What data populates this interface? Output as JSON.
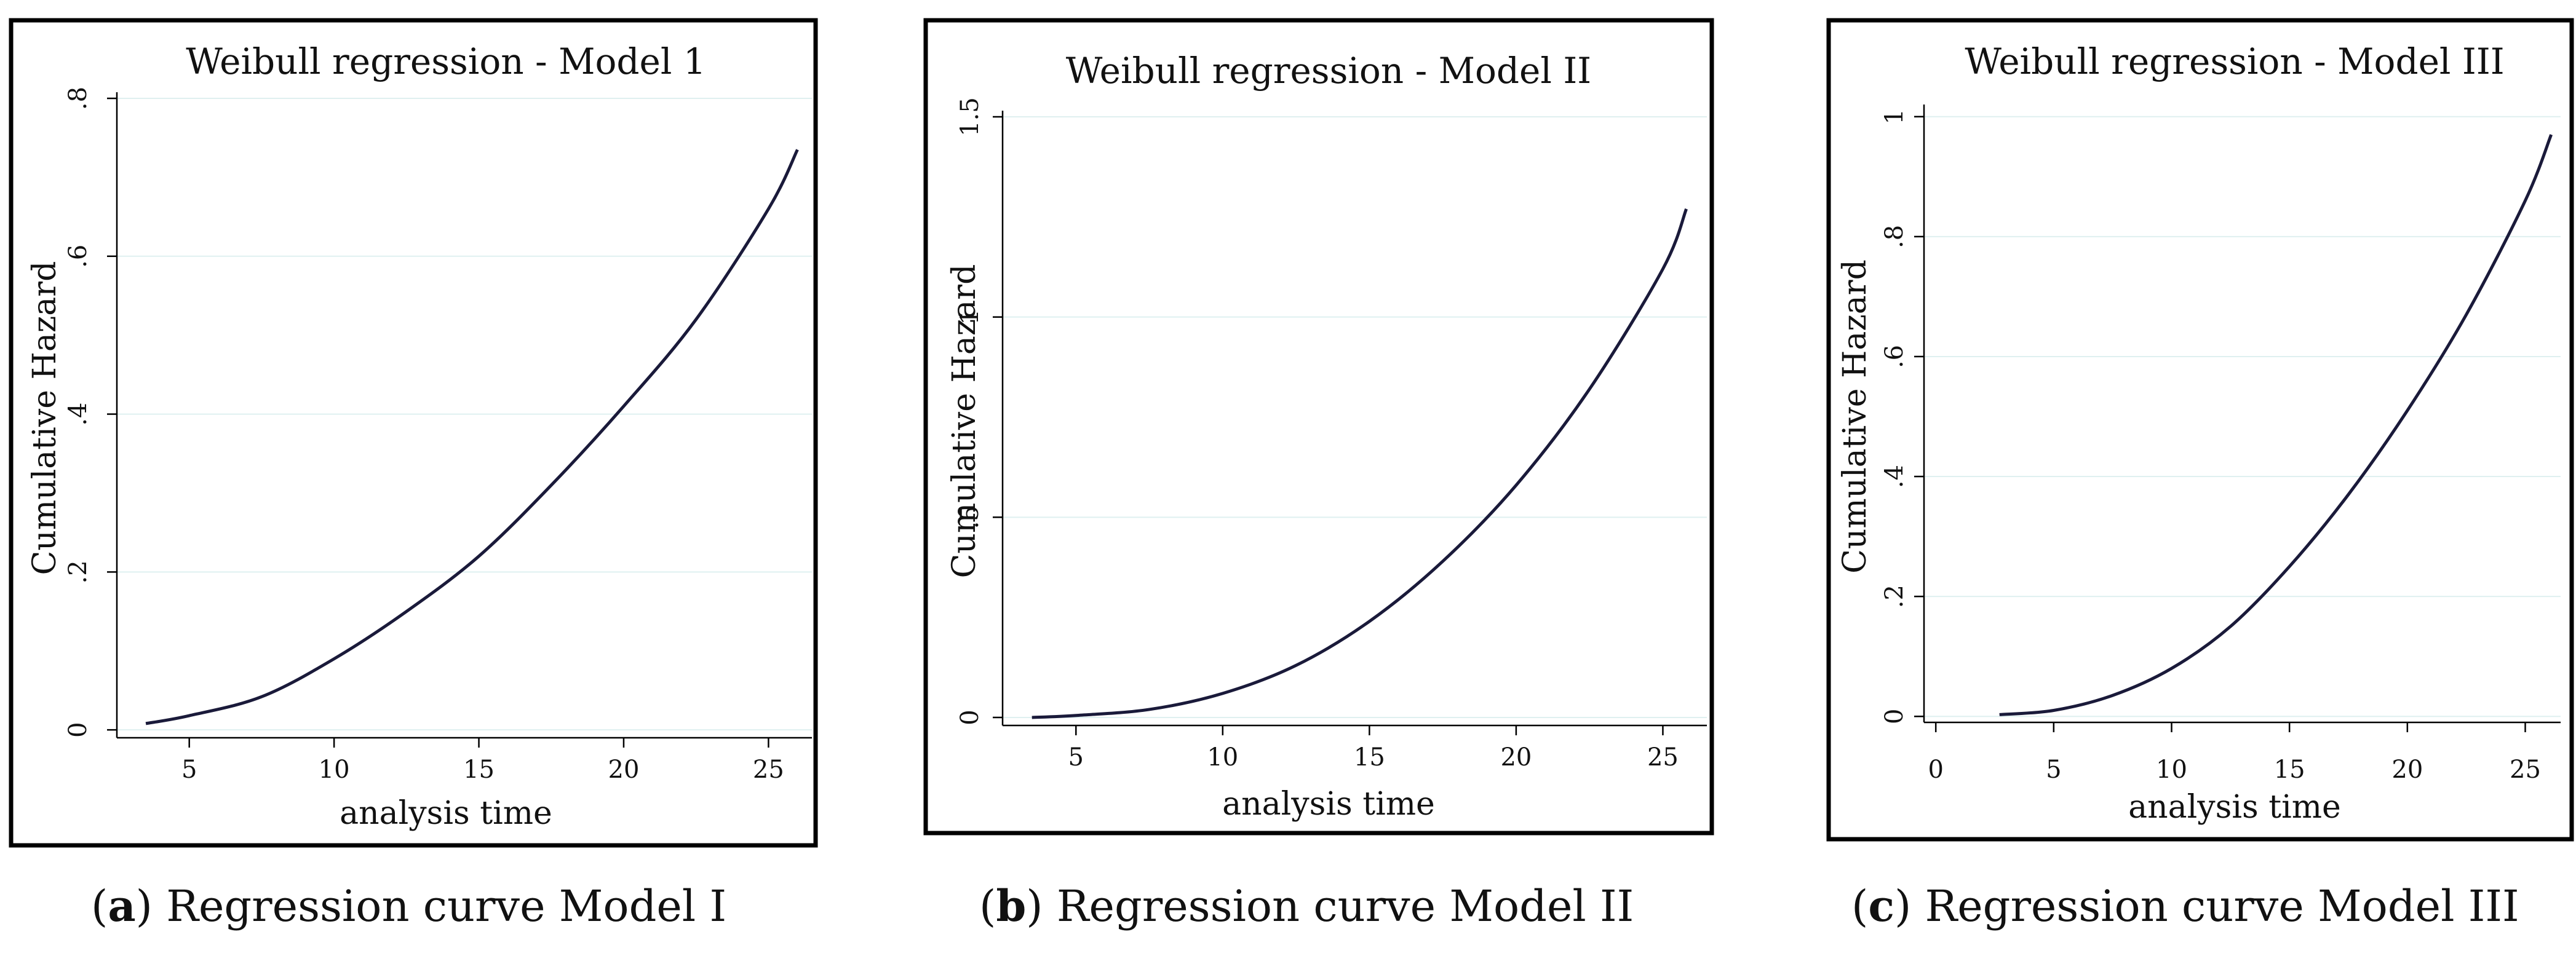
{
  "chart_data": [
    {
      "type": "line",
      "title": "Weibull regression - Model 1",
      "xlabel": "analysis time",
      "ylabel": "Cumulative Hazard",
      "xlim": [
        2.5,
        26.5
      ],
      "ylim": [
        -0.01,
        0.8
      ],
      "xticks": [
        5,
        10,
        15,
        20,
        25
      ],
      "xtick_labels": [
        "5",
        "10",
        "15",
        "20",
        "25"
      ],
      "yticks": [
        0,
        0.2,
        0.4,
        0.6,
        0.8
      ],
      "ytick_labels": [
        "0",
        ".2",
        ".4",
        ".6",
        ".8"
      ],
      "grid": true,
      "series": [
        {
          "name": "Cumulative Hazard",
          "x": [
            3.5,
            5,
            7.5,
            10,
            12.5,
            15,
            17.5,
            20,
            22.5,
            25,
            26
          ],
          "y": [
            0.008,
            0.018,
            0.042,
            0.09,
            0.15,
            0.22,
            0.31,
            0.41,
            0.52,
            0.66,
            0.735
          ]
        }
      ],
      "caption_letter": "a",
      "caption_text": "Regression curve Model I"
    },
    {
      "type": "line",
      "title": "Weibull regression - Model II",
      "xlabel": "analysis time",
      "ylabel": "Cumulative Hazard",
      "xlim": [
        2.5,
        26.5
      ],
      "ylim": [
        -0.02,
        1.5
      ],
      "xticks": [
        5,
        10,
        15,
        20,
        25
      ],
      "xtick_labels": [
        "5",
        "10",
        "15",
        "20",
        "25"
      ],
      "yticks": [
        0,
        0.5,
        1,
        1.5
      ],
      "ytick_labels": [
        "0",
        ".5",
        "1",
        "1.5"
      ],
      "grid": true,
      "series": [
        {
          "name": "Cumulative Hazard",
          "x": [
            3.5,
            5,
            7.5,
            10,
            12.5,
            15,
            17.5,
            20,
            22.5,
            25,
            25.8
          ],
          "y": [
            0.0,
            0.005,
            0.02,
            0.06,
            0.13,
            0.24,
            0.39,
            0.58,
            0.82,
            1.12,
            1.27
          ]
        }
      ],
      "caption_letter": "b",
      "caption_text": "Regression curve Model II"
    },
    {
      "type": "line",
      "title": "Weibull regression - Model III",
      "xlabel": "analysis time",
      "ylabel": "Cumulative Hazard",
      "xlim": [
        -0.5,
        26.5
      ],
      "ylim": [
        -0.01,
        1.01
      ],
      "xticks": [
        0,
        5,
        10,
        15,
        20,
        25
      ],
      "xtick_labels": [
        "0",
        "5",
        "10",
        "15",
        "20",
        "25"
      ],
      "yticks": [
        0,
        0.2,
        0.4,
        0.6,
        0.8,
        1
      ],
      "ytick_labels": [
        "0",
        ".2",
        ".4",
        ".6",
        ".8",
        "1"
      ],
      "grid": true,
      "series": [
        {
          "name": "Cumulative Hazard",
          "x": [
            2.7,
            5,
            7.5,
            10,
            12.5,
            15,
            17.5,
            20,
            22.5,
            25,
            26.1
          ],
          "y": [
            0.003,
            0.01,
            0.035,
            0.08,
            0.15,
            0.25,
            0.37,
            0.51,
            0.67,
            0.86,
            0.97
          ]
        }
      ],
      "caption_letter": "c",
      "caption_text": "Regression curve Model III"
    }
  ]
}
